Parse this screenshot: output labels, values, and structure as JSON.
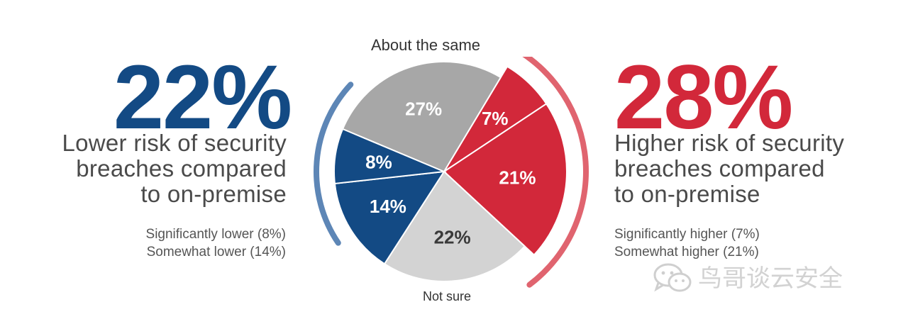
{
  "colors": {
    "blue": "#134a84",
    "red": "#d2283a",
    "gray_dark": "#a7a7a7",
    "gray_light": "#d3d3d3",
    "arc_blue": "#5d86b6",
    "arc_red": "#e0646f"
  },
  "left": {
    "percent": "22%",
    "caption_lines": [
      "Lower risk of security",
      "breaches compared",
      "to on-premise"
    ],
    "details": [
      "Significantly lower (8%)",
      "Somewhat lower (14%)"
    ]
  },
  "right": {
    "percent": "28%",
    "caption_lines": [
      "Higher risk of security",
      "breaches compared",
      "to on-premise"
    ],
    "details": [
      "Significantly higher (7%)",
      "Somewhat higher (21%)"
    ]
  },
  "pie_labels": {
    "top": "About the same",
    "bottom": "Not sure"
  },
  "chart_data": {
    "type": "pie",
    "slices": [
      {
        "label": "7%",
        "value": 7,
        "color": "#d2283a"
      },
      {
        "label": "21%",
        "value": 21,
        "color": "#d2283a"
      },
      {
        "label": "22%",
        "value": 22,
        "color": "#d3d3d3"
      },
      {
        "label": "14%",
        "value": 14,
        "color": "#134a84"
      },
      {
        "label": "8%",
        "value": 8,
        "color": "#134a84"
      },
      {
        "label": "27%",
        "value": 27,
        "color": "#a7a7a7"
      }
    ]
  },
  "watermark": {
    "text": "鸟哥谈云安全",
    "icon": "wechat-icon"
  }
}
